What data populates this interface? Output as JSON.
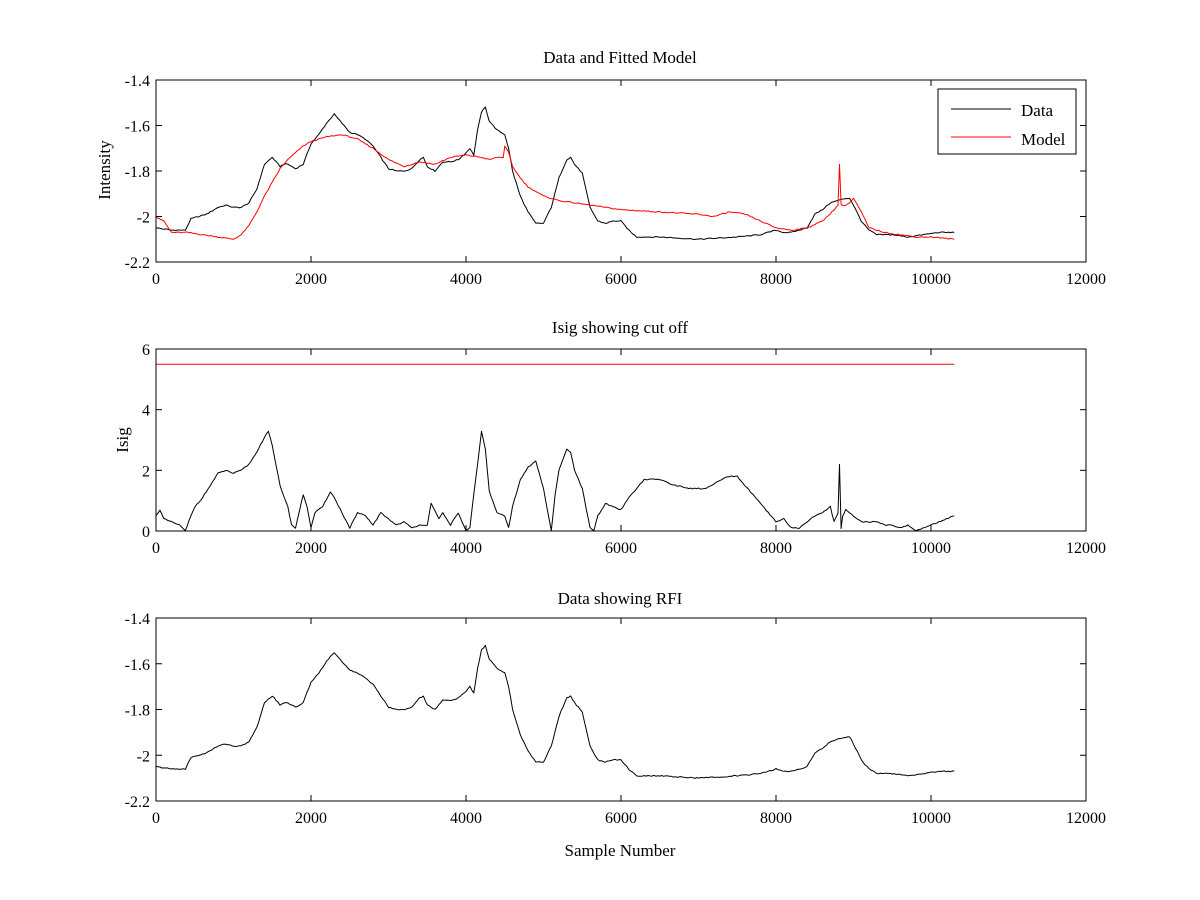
{
  "chart_data": [
    {
      "type": "line",
      "title": "Data and Fitted Model",
      "xlabel": "",
      "ylabel": "Intensity",
      "xlim": [
        0,
        12000
      ],
      "ylim": [
        -2.2,
        -1.4
      ],
      "xticks": [
        "0",
        "2000",
        "4000",
        "6000",
        "8000",
        "10000",
        "12000"
      ],
      "yticks": [
        "-1.4",
        "-1.6",
        "-1.8",
        "-2",
        "-2.2"
      ],
      "xtick_values": [
        0,
        2000,
        4000,
        6000,
        8000,
        10000,
        12000
      ],
      "ytick_values": [
        -1.4,
        -1.6,
        -1.8,
        -2,
        -2.2
      ],
      "grid": false,
      "legend": "top-right",
      "series": [
        {
          "name": "Data",
          "color": "#000000",
          "x": [
            0,
            200,
            380,
            450,
            650,
            800,
            900,
            1000,
            1100,
            1200,
            1300,
            1400,
            1500,
            1600,
            1650,
            1700,
            1800,
            1900,
            2000,
            2100,
            2200,
            2300,
            2400,
            2500,
            2600,
            2700,
            2800,
            2900,
            3000,
            3100,
            3200,
            3300,
            3400,
            3450,
            3500,
            3600,
            3700,
            3800,
            3900,
            4000,
            4050,
            4100,
            4150,
            4200,
            4250,
            4300,
            4400,
            4500,
            4550,
            4600,
            4700,
            4800,
            4900,
            5000,
            5100,
            5200,
            5300,
            5350,
            5400,
            5500,
            5600,
            5700,
            5800,
            5900,
            6000,
            6100,
            6200,
            6500,
            7000,
            7500,
            7800,
            7900,
            8000,
            8100,
            8200,
            8300,
            8400,
            8500,
            8600,
            8700,
            8800,
            8900,
            8950,
            9000,
            9100,
            9200,
            9300,
            9500,
            9700,
            9900,
            10100,
            10300
          ],
          "values": [
            -2.05,
            -2.06,
            -2.06,
            -2.01,
            -1.99,
            -1.96,
            -1.95,
            -1.96,
            -1.96,
            -1.94,
            -1.88,
            -1.77,
            -1.74,
            -1.78,
            -1.77,
            -1.77,
            -1.79,
            -1.77,
            -1.68,
            -1.64,
            -1.59,
            -1.55,
            -1.59,
            -1.63,
            -1.64,
            -1.66,
            -1.69,
            -1.74,
            -1.79,
            -1.8,
            -1.8,
            -1.79,
            -1.75,
            -1.74,
            -1.78,
            -1.8,
            -1.76,
            -1.76,
            -1.75,
            -1.72,
            -1.7,
            -1.73,
            -1.62,
            -1.54,
            -1.52,
            -1.58,
            -1.62,
            -1.64,
            -1.7,
            -1.8,
            -1.91,
            -1.98,
            -2.03,
            -2.03,
            -1.96,
            -1.83,
            -1.75,
            -1.74,
            -1.77,
            -1.81,
            -1.96,
            -2.02,
            -2.03,
            -2.02,
            -2.02,
            -2.06,
            -2.09,
            -2.09,
            -2.1,
            -2.09,
            -2.08,
            -2.07,
            -2.06,
            -2.07,
            -2.07,
            -2.06,
            -2.05,
            -1.99,
            -1.97,
            -1.94,
            -1.93,
            -1.92,
            -1.92,
            -1.95,
            -2.02,
            -2.06,
            -2.08,
            -2.08,
            -2.09,
            -2.08,
            -2.07,
            -2.07
          ]
        },
        {
          "name": "Model",
          "color": "#ff0000",
          "x": [
            0,
            100,
            200,
            400,
            600,
            800,
            1000,
            1100,
            1200,
            1300,
            1400,
            1500,
            1600,
            1700,
            1800,
            1900,
            2000,
            2200,
            2400,
            2600,
            2800,
            3000,
            3200,
            3400,
            3600,
            3800,
            4000,
            4200,
            4300,
            4400,
            4480,
            4500,
            4550,
            4600,
            4700,
            4800,
            5000,
            5200,
            5600,
            6000,
            6500,
            7000,
            7200,
            7400,
            7600,
            7800,
            8000,
            8200,
            8400,
            8600,
            8750,
            8800,
            8820,
            8840,
            8900,
            8950,
            9000,
            9100,
            9200,
            9400,
            9600,
            9800,
            10000,
            10300
          ],
          "values": [
            -2.0,
            -2.02,
            -2.07,
            -2.07,
            -2.08,
            -2.09,
            -2.1,
            -2.08,
            -2.04,
            -1.98,
            -1.91,
            -1.85,
            -1.79,
            -1.75,
            -1.72,
            -1.69,
            -1.67,
            -1.65,
            -1.64,
            -1.66,
            -1.7,
            -1.75,
            -1.78,
            -1.76,
            -1.77,
            -1.74,
            -1.73,
            -1.74,
            -1.75,
            -1.74,
            -1.74,
            -1.69,
            -1.72,
            -1.78,
            -1.83,
            -1.87,
            -1.91,
            -1.93,
            -1.95,
            -1.97,
            -1.98,
            -1.99,
            -2.0,
            -1.98,
            -1.99,
            -2.02,
            -2.05,
            -2.06,
            -2.05,
            -2.02,
            -1.97,
            -1.95,
            -1.77,
            -1.95,
            -1.95,
            -1.94,
            -1.92,
            -1.98,
            -2.05,
            -2.07,
            -2.08,
            -2.09,
            -2.09,
            -2.1
          ]
        }
      ]
    },
    {
      "type": "line",
      "title": "Isig showing cut off",
      "xlabel": "",
      "ylabel": "Isig",
      "xlim": [
        0,
        12000
      ],
      "ylim": [
        0,
        6
      ],
      "xticks": [
        "0",
        "2000",
        "4000",
        "6000",
        "8000",
        "10000",
        "12000"
      ],
      "yticks": [
        "0",
        "2",
        "4",
        "6"
      ],
      "xtick_values": [
        0,
        2000,
        4000,
        6000,
        8000,
        10000,
        12000
      ],
      "ytick_values": [
        0,
        2,
        4,
        6
      ],
      "grid": false,
      "series": [
        {
          "color": "#000000",
          "x": [
            0,
            50,
            100,
            200,
            300,
            380,
            420,
            500,
            600,
            700,
            800,
            900,
            1000,
            1100,
            1200,
            1300,
            1400,
            1450,
            1500,
            1600,
            1700,
            1750,
            1800,
            1900,
            1950,
            2000,
            2050,
            2150,
            2250,
            2300,
            2400,
            2500,
            2600,
            2700,
            2800,
            2900,
            3000,
            3100,
            3200,
            3300,
            3400,
            3500,
            3550,
            3650,
            3700,
            3800,
            3900,
            4000,
            4050,
            4100,
            4150,
            4200,
            4250,
            4300,
            4400,
            4500,
            4550,
            4600,
            4700,
            4800,
            4900,
            5000,
            5100,
            5150,
            5200,
            5300,
            5350,
            5400,
            5500,
            5600,
            5650,
            5700,
            5800,
            5900,
            6000,
            6100,
            6200,
            6300,
            6500,
            6700,
            6900,
            7100,
            7300,
            7400,
            7500,
            7700,
            7900,
            8000,
            8100,
            8200,
            8300,
            8400,
            8500,
            8600,
            8700,
            8750,
            8800,
            8820,
            8840,
            8860,
            8900,
            9000,
            9100,
            9200,
            9300,
            9400,
            9500,
            9600,
            9700,
            9800,
            9900,
            10000,
            10100,
            10200,
            10300
          ],
          "values": [
            0.5,
            0.7,
            0.4,
            0.3,
            0.2,
            0.0,
            0.3,
            0.8,
            1.1,
            1.5,
            1.9,
            2.0,
            1.9,
            2.0,
            2.2,
            2.6,
            3.1,
            3.3,
            2.8,
            1.5,
            0.8,
            0.2,
            0.1,
            1.2,
            0.8,
            0.1,
            0.6,
            0.8,
            1.3,
            1.1,
            0.6,
            0.1,
            0.6,
            0.5,
            0.2,
            0.6,
            0.4,
            0.2,
            0.3,
            0.1,
            0.2,
            0.2,
            0.9,
            0.4,
            0.6,
            0.2,
            0.6,
            0.0,
            0.1,
            1.2,
            2.2,
            3.3,
            2.7,
            1.3,
            0.6,
            0.5,
            0.1,
            0.8,
            1.7,
            2.1,
            2.3,
            1.4,
            0.0,
            1.2,
            2.0,
            2.7,
            2.6,
            2.0,
            1.4,
            0.1,
            0.0,
            0.5,
            0.9,
            0.8,
            0.7,
            1.1,
            1.4,
            1.7,
            1.7,
            1.5,
            1.4,
            1.4,
            1.7,
            1.8,
            1.8,
            1.2,
            0.6,
            0.3,
            0.4,
            0.1,
            0.1,
            0.3,
            0.5,
            0.6,
            0.8,
            0.3,
            0.6,
            2.2,
            0.1,
            0.5,
            0.7,
            0.5,
            0.3,
            0.3,
            0.3,
            0.2,
            0.2,
            0.1,
            0.2,
            0.0,
            0.1,
            0.2,
            0.3,
            0.4,
            0.5
          ]
        },
        {
          "color": "#ff0000",
          "x": [
            0,
            10300
          ],
          "values": [
            5.5,
            5.5
          ]
        }
      ]
    },
    {
      "type": "line",
      "title": "Data showing RFI",
      "xlabel": "Sample Number",
      "ylabel": "",
      "xlim": [
        0,
        12000
      ],
      "ylim": [
        -2.2,
        -1.4
      ],
      "xticks": [
        "0",
        "2000",
        "4000",
        "6000",
        "8000",
        "10000",
        "12000"
      ],
      "yticks": [
        "-1.4",
        "-1.6",
        "-1.8",
        "-2",
        "-2.2"
      ],
      "xtick_values": [
        0,
        2000,
        4000,
        6000,
        8000,
        10000,
        12000
      ],
      "ytick_values": [
        -1.4,
        -1.6,
        -1.8,
        -2,
        -2.2
      ],
      "grid": false,
      "series": [
        {
          "color": "#000000",
          "x": [
            0,
            200,
            380,
            450,
            650,
            800,
            900,
            1000,
            1100,
            1200,
            1300,
            1400,
            1500,
            1600,
            1650,
            1700,
            1800,
            1900,
            2000,
            2100,
            2200,
            2300,
            2400,
            2500,
            2600,
            2700,
            2800,
            2900,
            3000,
            3100,
            3200,
            3300,
            3400,
            3450,
            3500,
            3600,
            3700,
            3800,
            3900,
            4000,
            4050,
            4100,
            4150,
            4200,
            4250,
            4300,
            4400,
            4500,
            4550,
            4600,
            4700,
            4800,
            4900,
            5000,
            5100,
            5200,
            5300,
            5350,
            5400,
            5500,
            5600,
            5700,
            5800,
            5900,
            6000,
            6100,
            6200,
            6500,
            7000,
            7500,
            7800,
            7900,
            8000,
            8100,
            8200,
            8300,
            8400,
            8500,
            8600,
            8700,
            8800,
            8900,
            8950,
            9000,
            9100,
            9200,
            9300,
            9500,
            9700,
            9900,
            10100,
            10300
          ],
          "values": [
            -2.05,
            -2.06,
            -2.06,
            -2.01,
            -1.99,
            -1.96,
            -1.95,
            -1.96,
            -1.96,
            -1.94,
            -1.88,
            -1.77,
            -1.74,
            -1.78,
            -1.77,
            -1.77,
            -1.79,
            -1.77,
            -1.68,
            -1.64,
            -1.59,
            -1.55,
            -1.59,
            -1.63,
            -1.64,
            -1.66,
            -1.69,
            -1.74,
            -1.79,
            -1.8,
            -1.8,
            -1.79,
            -1.75,
            -1.74,
            -1.78,
            -1.8,
            -1.76,
            -1.76,
            -1.75,
            -1.72,
            -1.7,
            -1.73,
            -1.62,
            -1.54,
            -1.52,
            -1.58,
            -1.62,
            -1.64,
            -1.7,
            -1.8,
            -1.91,
            -1.98,
            -2.03,
            -2.03,
            -1.96,
            -1.83,
            -1.75,
            -1.74,
            -1.77,
            -1.81,
            -1.96,
            -2.02,
            -2.03,
            -2.02,
            -2.02,
            -2.06,
            -2.09,
            -2.09,
            -2.1,
            -2.09,
            -2.08,
            -2.07,
            -2.06,
            -2.07,
            -2.07,
            -2.06,
            -2.05,
            -1.99,
            -1.97,
            -1.94,
            -1.93,
            -1.92,
            -1.92,
            -1.95,
            -2.02,
            -2.06,
            -2.08,
            -2.08,
            -2.09,
            -2.08,
            -2.07,
            -2.07
          ]
        }
      ]
    }
  ]
}
